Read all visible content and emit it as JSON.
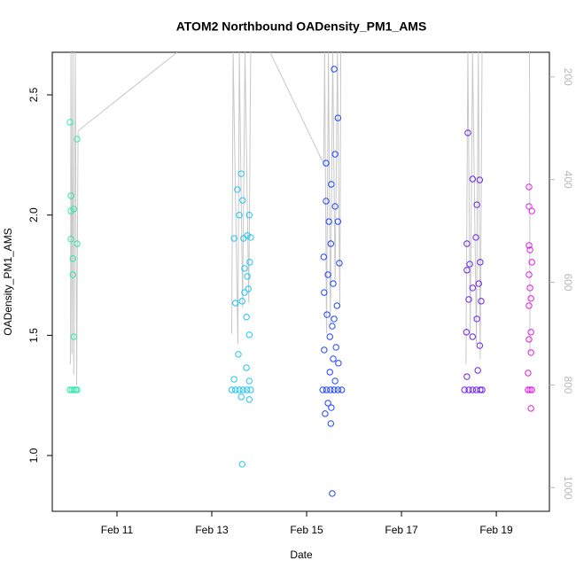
{
  "chart_data": {
    "type": "scatter",
    "title": "ATOM2 Northbound OADensity_PM1_AMS",
    "x_label": "Date",
    "y_label": "OADensity_PM1_AMS",
    "xlim": [
      9.636,
      20.12
    ],
    "xticks": [
      {
        "value": 11,
        "label": "Feb 11"
      },
      {
        "value": 13,
        "label": "Feb 13"
      },
      {
        "value": 15,
        "label": "Feb 15"
      },
      {
        "value": 17,
        "label": "Feb 17"
      },
      {
        "value": 19,
        "label": "Feb 19"
      }
    ],
    "ylim": [
      0.768,
      2.677
    ],
    "yticks": [
      {
        "value": 1.0,
        "label": "1.0"
      },
      {
        "value": 1.5,
        "label": "1.5"
      },
      {
        "value": 2.0,
        "label": "2.0"
      },
      {
        "value": 2.5,
        "label": "2.5"
      }
    ],
    "y2lim": [
      1046,
      152
    ],
    "y2ticks": [
      200,
      400,
      600,
      800,
      1000
    ],
    "y2_color": "#b8b8b8",
    "series": [
      {
        "mode": "line",
        "axis": "y2",
        "color": "#c8c8c8",
        "x": [
          10.02,
          10.03,
          10.05,
          10.07,
          10.09,
          10.12,
          10.15,
          10.18,
          12.27,
          13.0,
          13.42,
          13.45,
          13.55,
          13.58,
          13.65,
          13.7,
          13.78,
          13.82,
          14.0,
          14.23,
          15.36,
          15.38,
          15.42,
          15.46,
          15.5,
          15.55,
          15.6,
          15.65,
          15.7,
          15.72,
          17,
          18.36,
          18.4,
          18.45,
          18.5,
          18.58,
          18.62,
          18.66,
          18.7,
          19.5,
          19.7,
          19.71
        ],
        "values": [
          760,
          152,
          740,
          152,
          780,
          152,
          800,
          305,
          152,
          null,
          700,
          152,
          720,
          152,
          650,
          152,
          640,
          152,
          null,
          152,
          369,
          152,
          700,
          152,
          680,
          152,
          600,
          152,
          650,
          152,
          null,
          760,
          152,
          700,
          152,
          720,
          152,
          750,
          152,
          null,
          152,
          740
        ]
      },
      {
        "mode": "points",
        "color": "#2ee8a6",
        "x": [
          10.01,
          10.03,
          10.09,
          10.03,
          10.03,
          10.07,
          10.07,
          10.16,
          10.16,
          10.09,
          10.01,
          10.05,
          10.09,
          10.13,
          10.16
        ],
        "values": [
          2.386,
          2.08,
          2.025,
          2.017,
          1.9,
          1.819,
          1.752,
          2.316,
          1.881,
          1.494,
          1.273,
          1.273,
          1.273,
          1.273,
          1.273
        ]
      },
      {
        "mode": "points",
        "color": "#1ec4f2",
        "x": [
          13.58,
          13.62,
          13.54,
          13.65,
          13.79,
          13.75,
          13.47,
          13.67,
          13.82,
          13.69,
          13.77,
          13.64,
          13.73,
          13.5,
          13.79,
          13.56,
          13.73,
          13.79,
          13.47,
          13.64,
          13.79,
          13.62,
          13.8,
          13.75,
          13.69,
          13.42,
          13.5,
          13.58,
          13.66,
          13.74,
          13.82
        ],
        "values": [
          2.0,
          2.172,
          2.106,
          2.061,
          2.0,
          1.915,
          1.903,
          1.903,
          1.907,
          1.778,
          1.693,
          1.642,
          1.576,
          1.634,
          1.502,
          1.421,
          1.365,
          1.31,
          1.317,
          0.964,
          1.233,
          1.244,
          1.804,
          1.745,
          1.678,
          1.273,
          1.273,
          1.273,
          1.273,
          1.273,
          1.273
        ]
      },
      {
        "mode": "points",
        "color": "#1f44f5",
        "x": [
          15.58,
          15.66,
          15.41,
          15.6,
          15.52,
          15.41,
          15.6,
          15.47,
          15.66,
          15.51,
          15.36,
          15.69,
          15.45,
          15.56,
          15.37,
          15.64,
          15.43,
          15.54,
          15.49,
          15.62,
          15.37,
          15.56,
          15.67,
          15.49,
          15.6,
          15.52,
          15.45,
          15.51,
          15.54,
          15.39,
          15.58,
          15.34,
          15.42,
          15.5,
          15.58,
          15.66,
          15.74
        ],
        "values": [
          2.607,
          2.404,
          2.216,
          2.253,
          2.128,
          2.058,
          2.036,
          1.973,
          1.973,
          1.881,
          1.826,
          1.8,
          1.752,
          1.715,
          1.678,
          1.623,
          1.586,
          1.538,
          1.494,
          1.45,
          1.439,
          1.402,
          1.384,
          1.347,
          1.31,
          1.199,
          1.218,
          1.133,
          0.842,
          1.174,
          1.568,
          1.273,
          1.273,
          1.273,
          1.273,
          1.273,
          1.273
        ]
      },
      {
        "mode": "points",
        "color": "#6a22ee",
        "x": [
          18.4,
          18.5,
          18.65,
          18.59,
          18.38,
          18.57,
          18.44,
          18.66,
          18.38,
          18.63,
          18.5,
          18.42,
          18.68,
          18.59,
          18.37,
          18.5,
          18.65,
          18.61,
          18.38,
          18.33,
          18.42,
          18.5,
          18.58,
          18.66,
          18.7
        ],
        "values": [
          2.342,
          2.15,
          2.146,
          2.043,
          1.881,
          1.907,
          1.796,
          1.804,
          1.771,
          1.715,
          1.697,
          1.649,
          1.642,
          1.568,
          1.513,
          1.494,
          1.457,
          1.354,
          1.328,
          1.273,
          1.273,
          1.273,
          1.273,
          1.273,
          1.273
        ]
      },
      {
        "mode": "points",
        "color": "#e020e0",
        "x": [
          19.69,
          19.69,
          19.75,
          19.69,
          19.71,
          19.75,
          19.69,
          19.71,
          19.73,
          19.69,
          19.73,
          19.69,
          19.73,
          19.67,
          19.73,
          19.67,
          19.71,
          19.75
        ],
        "values": [
          2.117,
          2.036,
          2.017,
          1.874,
          1.855,
          1.804,
          1.752,
          1.697,
          1.653,
          1.623,
          1.513,
          1.483,
          1.428,
          1.343,
          1.196,
          1.273,
          1.273,
          1.273
        ]
      }
    ]
  }
}
